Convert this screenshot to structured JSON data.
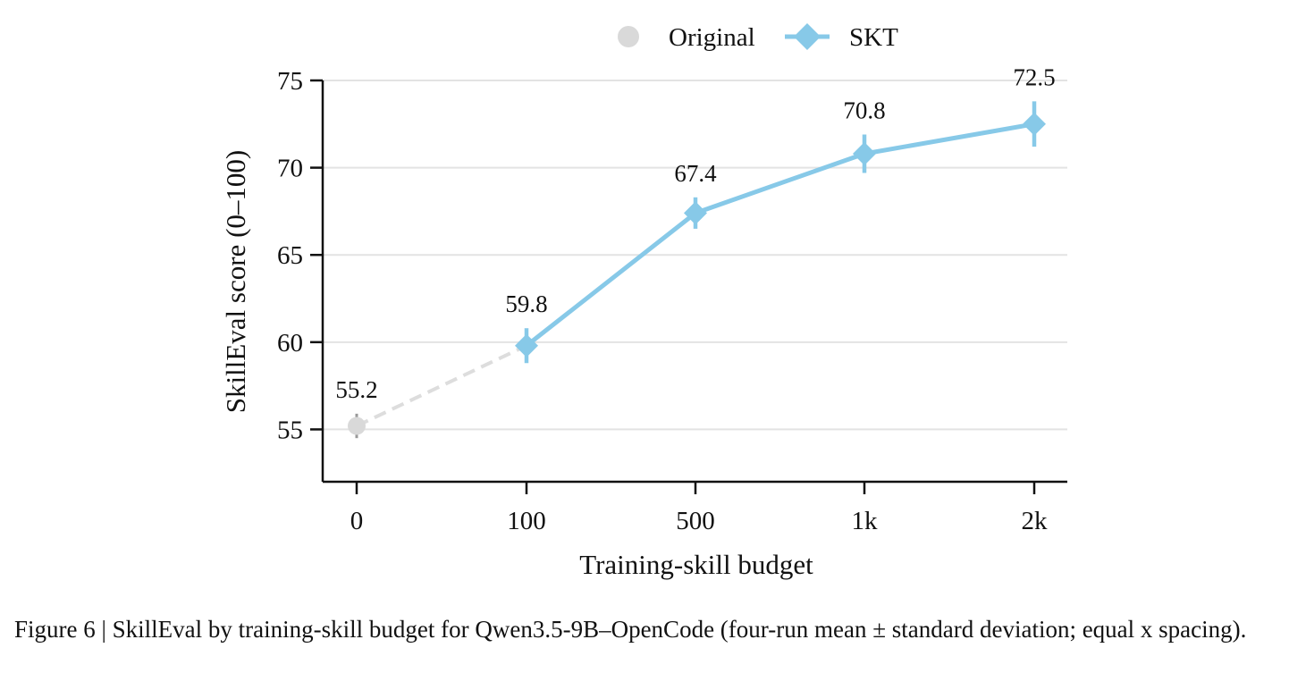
{
  "chart_data": {
    "type": "line",
    "title": "",
    "xlabel": "Training-skill budget",
    "ylabel": "SkillEval score (0–100)",
    "categories": [
      "0",
      "100",
      "500",
      "1k",
      "2k"
    ],
    "y_ticks": [
      "55",
      "60",
      "65",
      "70",
      "75"
    ],
    "ylim": [
      52,
      75
    ],
    "grid": "horizontal",
    "legend_position": "top-center",
    "series": [
      {
        "name": "Original",
        "marker": "circle",
        "color": "#d9d9d9",
        "points": [
          {
            "category": "0",
            "value": 55.2,
            "std": 0.7,
            "label": "55.2"
          }
        ]
      },
      {
        "name": "SKT",
        "marker": "diamond",
        "color": "#87c9e8",
        "points": [
          {
            "category": "100",
            "value": 59.8,
            "std": 1.0,
            "label": "59.8"
          },
          {
            "category": "500",
            "value": 67.4,
            "std": 0.9,
            "label": "67.4"
          },
          {
            "category": "1k",
            "value": 70.8,
            "std": 1.1,
            "label": "70.8"
          },
          {
            "category": "2k",
            "value": 72.5,
            "std": 1.3,
            "label": "72.5"
          }
        ]
      }
    ],
    "connector": {
      "from": "0",
      "to": "100",
      "style": "dashed",
      "color": "#dddddd"
    }
  },
  "caption": "Figure 6 | SkillEval by training-skill budget for Qwen3.5-9B–OpenCode (four-run mean ± standard deviation; equal x spacing)."
}
